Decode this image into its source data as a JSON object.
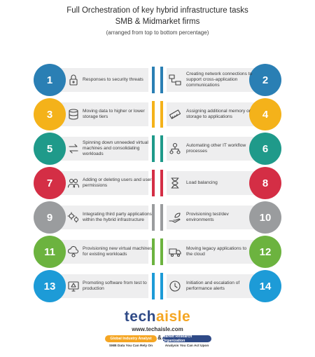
{
  "header": {
    "line1": "Full Orchestration of key hybrid infrastructure tasks",
    "line2": "SMB & Midmarket firms",
    "line3": "(arranged from top to bottom percentage)"
  },
  "rows": [
    {
      "color": "#2a7fb4",
      "left": {
        "num": "1",
        "text": "Responses to security threats",
        "icon": "lock-icon"
      },
      "right": {
        "num": "2",
        "text": "Creating network connections to support cross-application communications",
        "icon": "network-icon"
      }
    },
    {
      "color": "#f4b21a",
      "left": {
        "num": "3",
        "text": "Moving data to higher or lower storage tiers",
        "icon": "database-icon"
      },
      "right": {
        "num": "4",
        "text": "Assigning additional memory or storage to applications",
        "icon": "memory-icon"
      }
    },
    {
      "color": "#1f9a8a",
      "left": {
        "num": "5",
        "text": "Spinning down unneeded virtual machines and consolidating workloads",
        "icon": "arrows-icon"
      },
      "right": {
        "num": "6",
        "text": "Automating other IT workflow processes",
        "icon": "workflow-icon"
      }
    },
    {
      "color": "#d42e45",
      "left": {
        "num": "7",
        "text": "Adding or deleting users and user permissions",
        "icon": "users-icon"
      },
      "right": {
        "num": "8",
        "text": "Load balancing",
        "icon": "hourglass-icon"
      }
    },
    {
      "color": "#9a9c9e",
      "left": {
        "num": "9",
        "text": "Integrating third party applications within the hybrid infrastructure",
        "icon": "gears-icon"
      },
      "right": {
        "num": "10",
        "text": "Provisioning test/dev environments",
        "icon": "hand-leaf-icon"
      }
    },
    {
      "color": "#6cb33f",
      "left": {
        "num": "11",
        "text": "Provisioning new virtual machines for existing workloads",
        "icon": "cloud-gear-icon"
      },
      "right": {
        "num": "12",
        "text": "Moving legacy applications to the cloud",
        "icon": "truck-icon"
      }
    },
    {
      "color": "#1d9bd7",
      "left": {
        "num": "13",
        "text": "Promoting software from test to production",
        "icon": "screen-icon"
      },
      "right": {
        "num": "14",
        "text": "Initiation and escalation of performance alerts",
        "icon": "clock-icon"
      }
    }
  ],
  "footer": {
    "logo_a": "tech",
    "logo_b": "aisle",
    "url": "www.techaisle.com",
    "pill1": "Global Industry Analyst",
    "amp": "&",
    "pill2": "Market Research Organization",
    "tag1": "SMB Data You Can Rely On",
    "tag2": "Analysis You Can Act Upon"
  }
}
